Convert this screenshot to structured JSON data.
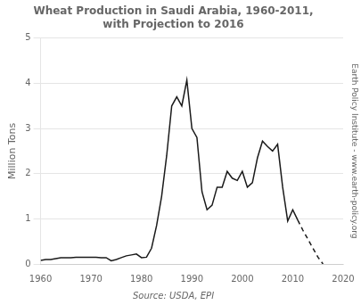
{
  "chart_data": {
    "type": "line",
    "title": "Wheat Production in Saudi Arabia, 1960-2011,\nwith Projection to 2016",
    "ylabel": "Million Tons",
    "annotations": [
      "Source: USDA, EPI",
      "Earth Policy Institute - www.earth-policy.org"
    ],
    "xlim": [
      1960,
      2020
    ],
    "ylim": [
      0,
      5
    ],
    "xticks": [
      1960,
      1970,
      1980,
      1990,
      2000,
      2010,
      2020
    ],
    "yticks": [
      0,
      1,
      2,
      3,
      4,
      5
    ],
    "grid": "y",
    "series": [
      {
        "x": [
          1960,
          1961,
          1962,
          1963,
          1964,
          1965,
          1966,
          1967,
          1968,
          1969,
          1970,
          1971,
          1972,
          1973,
          1974,
          1975,
          1976,
          1977,
          1978,
          1979,
          1980,
          1981,
          1982,
          1983,
          1984,
          1985,
          1986,
          1987,
          1988,
          1989,
          1990,
          1991,
          1992,
          1993,
          1994,
          1995,
          1996,
          1997,
          1998,
          1999,
          2000,
          2001,
          2002,
          2003,
          2004,
          2005,
          2006,
          2007,
          2008,
          2009,
          2010,
          2011
        ],
        "values": [
          0.08,
          0.1,
          0.1,
          0.12,
          0.14,
          0.14,
          0.14,
          0.15,
          0.15,
          0.15,
          0.15,
          0.15,
          0.14,
          0.14,
          0.07,
          0.1,
          0.14,
          0.18,
          0.2,
          0.22,
          0.14,
          0.15,
          0.35,
          0.85,
          1.5,
          2.4,
          3.5,
          3.7,
          3.5,
          4.07,
          3.0,
          2.8,
          1.6,
          1.2,
          1.3,
          1.7,
          1.7,
          2.05,
          1.9,
          1.85,
          2.05,
          1.7,
          1.8,
          2.35,
          2.72,
          2.6,
          2.5,
          2.65,
          1.7,
          0.95,
          1.2,
          0.97
        ],
        "color": "#1a1a1a",
        "line_style": "solid"
      },
      {
        "x": [
          2011,
          2012,
          2013,
          2014,
          2015,
          2016
        ],
        "values": [
          0.97,
          0.75,
          0.55,
          0.35,
          0.15,
          0.0
        ],
        "color": "#1a1a1a",
        "line_style": "dashed"
      }
    ]
  }
}
